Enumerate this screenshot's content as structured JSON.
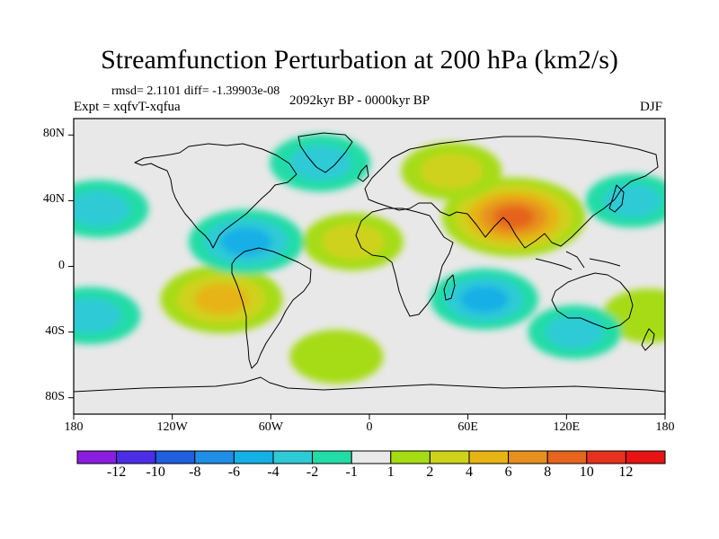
{
  "title": "Streamfunction Perturbation at 200 hPa (km2/s)",
  "stats_text": "rmsd= 2.1101 diff= -1.39903e-08",
  "experiment_text": "Expt = xqfvT-xqfua",
  "period_text": "2092kyr BP - 0000kyr BP",
  "season_text": "DJF",
  "chart_data": {
    "type": "heatmap",
    "projection": "cylindrical-equidistant",
    "lat_range": [
      -90,
      90
    ],
    "lon_range": [
      -180,
      180
    ],
    "lat_ticks": [
      {
        "value": 80,
        "label": "80N"
      },
      {
        "value": 40,
        "label": "40N"
      },
      {
        "value": 0,
        "label": "0"
      },
      {
        "value": -40,
        "label": "40S"
      },
      {
        "value": -80,
        "label": "80S"
      }
    ],
    "lon_ticks": [
      {
        "value": -180,
        "label": "180"
      },
      {
        "value": -120,
        "label": "120W"
      },
      {
        "value": -60,
        "label": "60W"
      },
      {
        "value": 0,
        "label": "0"
      },
      {
        "value": 60,
        "label": "60E"
      },
      {
        "value": 120,
        "label": "120E"
      },
      {
        "value": 180,
        "label": "180"
      }
    ],
    "colorbar": {
      "levels": [
        "-12",
        "-10",
        "-8",
        "-6",
        "-4",
        "-2",
        "-1",
        "1",
        "2",
        "4",
        "6",
        "8",
        "10",
        "12"
      ],
      "colors": [
        "#8a1ee0",
        "#4b2ee6",
        "#1f5fe0",
        "#1f8ee6",
        "#14b0e6",
        "#2ecad6",
        "#22dca6",
        "#e8e8e8",
        "#a6dc14",
        "#cfd21a",
        "#e6b414",
        "#e6901e",
        "#e6641e",
        "#e6321e",
        "#e61414"
      ]
    },
    "anomalies": [
      {
        "lon": 88,
        "lat": 30,
        "value": 9
      },
      {
        "lon": 50,
        "lat": 58,
        "value": 3
      },
      {
        "lon": -10,
        "lat": 15,
        "value": 3
      },
      {
        "lon": -90,
        "lat": -20,
        "value": 6
      },
      {
        "lon": -20,
        "lat": -55,
        "value": 2
      },
      {
        "lon": 170,
        "lat": -30,
        "value": 2
      },
      {
        "lon": -75,
        "lat": 15,
        "value": -5
      },
      {
        "lon": 70,
        "lat": -20,
        "value": -4
      },
      {
        "lon": -165,
        "lat": 35,
        "value": -3
      },
      {
        "lon": -30,
        "lat": 63,
        "value": -3
      },
      {
        "lon": 160,
        "lat": 40,
        "value": -2
      },
      {
        "lon": -170,
        "lat": -30,
        "value": -3
      },
      {
        "lon": 125,
        "lat": -40,
        "value": -2
      }
    ]
  }
}
